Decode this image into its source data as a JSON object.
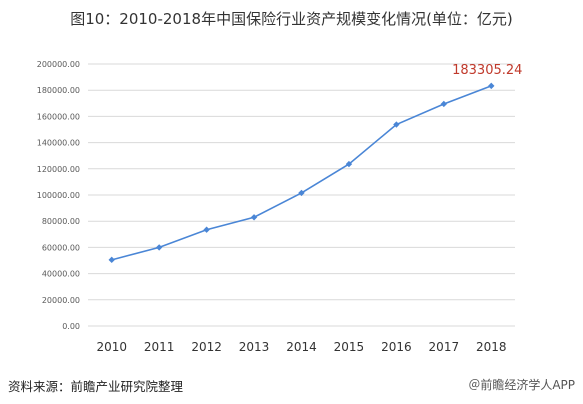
{
  "chart_data": {
    "type": "line",
    "title": "图10：2010-2018年中国保险行业资产规模变化情况(单位：亿元)",
    "xlabel": "",
    "ylabel": "",
    "x": [
      "2010",
      "2011",
      "2012",
      "2013",
      "2014",
      "2015",
      "2016",
      "2017",
      "2018"
    ],
    "series": [
      {
        "name": "",
        "values": [
          50500,
          60000,
          73500,
          83000,
          101600,
          123600,
          153800,
          169500,
          183305.24
        ]
      }
    ],
    "ylim": [
      0,
      200000
    ],
    "yticks": [
      "0.00",
      "20000.00",
      "40000.00",
      "60000.00",
      "80000.00",
      "100000.00",
      "120000.00",
      "140000.00",
      "160000.00",
      "180000.00",
      "200000.00"
    ],
    "data_labels": [
      {
        "index": 8,
        "text": "183305.24"
      }
    ],
    "grid": true,
    "legend": "none",
    "colors": {
      "line": "#4a86d6",
      "label": "#c0392b",
      "grid": "#d9d9d9"
    }
  },
  "footer": {
    "source": "资料来源：前瞻产业研究院整理",
    "credit": "＠前瞻经济学人APP"
  }
}
